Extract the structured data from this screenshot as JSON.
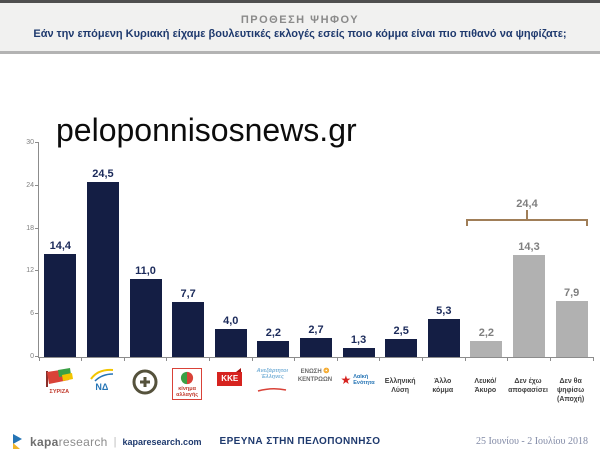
{
  "header": {
    "title": "ΠΡΟΘΕΣΗ ΨΗΦΟΥ",
    "subtitle": "Εάν την επόμενη Κυριακή είχαμε βουλευτικές εκλογές εσείς ποιο κόμμα είναι πιο πιθανό να ψηφίζατε;"
  },
  "watermark": {
    "text": "peloponnisosnews.gr"
  },
  "chart_data": {
    "type": "bar",
    "title": "ΠΡΟΘΕΣΗ ΨΗΦΟΥ",
    "subtitle": "Εάν την επόμενη Κυριακή είχαμε βουλευτικές εκλογές εσείς ποιο κόμμα είναι πιο πιθανό να ψηφίζατε;",
    "categories": [
      "ΣΥΡΙΖΑ",
      "ΝΔ",
      "Χρυσή Αυγή",
      "Κίνημα Αλλαγής",
      "ΚΚΕ",
      "Ανεξάρτητοι Έλληνες",
      "Ένωση Κεντρώων",
      "Λαϊκή Ενότητα",
      "Ελληνική Λύση",
      "Άλλο κόμμα",
      "Λευκό/Άκυρο",
      "Δεν έχω αποφασίσει",
      "Δεν θα ψηφίσω (Αποχή)"
    ],
    "values": [
      14.4,
      24.5,
      11.0,
      7.7,
      4.0,
      2.2,
      2.7,
      1.3,
      2.5,
      5.3,
      2.2,
      14.3,
      7.9
    ],
    "display_labels": [
      "14,4",
      "24,5",
      "11,0",
      "7,7",
      "4,0",
      "2,2",
      "2,7",
      "1,3",
      "2,5",
      "5,3",
      "2,2",
      "14,3",
      "7,9"
    ],
    "groups": [
      "party",
      "party",
      "party",
      "party",
      "party",
      "party",
      "party",
      "party",
      "party",
      "party",
      "other",
      "other",
      "other"
    ],
    "y_ticks": [
      0,
      6,
      12,
      18,
      24,
      30
    ],
    "ylim": [
      0,
      30
    ],
    "xlabel": "",
    "ylabel": "",
    "grid": false,
    "legend": "none",
    "annotation": {
      "label": "24,4",
      "from_index": 10,
      "to_index": 12
    },
    "colors": {
      "party_bar": "#141e44",
      "other_bar": "#b1b1b1",
      "party_label": "#1b2a5a",
      "other_label": "#7f7f7f",
      "bracket": "#a07e58"
    }
  },
  "x_axis": [
    {
      "logo": "syriza",
      "logo_text": "ΣΥΡΙΖΑ"
    },
    {
      "logo": "nd",
      "logo_text": "ΝΔ"
    },
    {
      "logo": "xa",
      "logo_text": ""
    },
    {
      "logo": "kinal",
      "logo_text": "κίνημα αλλαγής"
    },
    {
      "logo": "kke",
      "logo_text": "ΚΚΕ"
    },
    {
      "logo": "anel",
      "logo_text": "Ανεξάρτητοι Έλληνες"
    },
    {
      "logo": "ek",
      "logo_text": "ΕΝΩΣΗ ΚΕΝΤΡΩΩΝ"
    },
    {
      "logo": "lae",
      "logo_text": "Λαϊκή Ενότητα"
    },
    {
      "lines": [
        "Ελληνική",
        "Λύση"
      ]
    },
    {
      "lines": [
        "Άλλο",
        "κόμμα"
      ]
    },
    {
      "lines": [
        "Λευκό/",
        "Άκυρο"
      ]
    },
    {
      "lines": [
        "Δεν έχω",
        "αποφασίσει"
      ]
    },
    {
      "lines": [
        "Δεν θα",
        "ψηφίσω",
        "(Αποχή)"
      ]
    }
  ],
  "footer": {
    "brand_primary": "kapa",
    "brand_secondary": "research",
    "separator": "|",
    "brand_url": "kaparesearch.com",
    "center": "ΕΡΕΥΝΑ ΣΤΗΝ ΠΕΛΟΠΟΝΝΗΣΟ",
    "date_range": "25 Ιουνίου - 2 Ιουλίου 2018"
  }
}
